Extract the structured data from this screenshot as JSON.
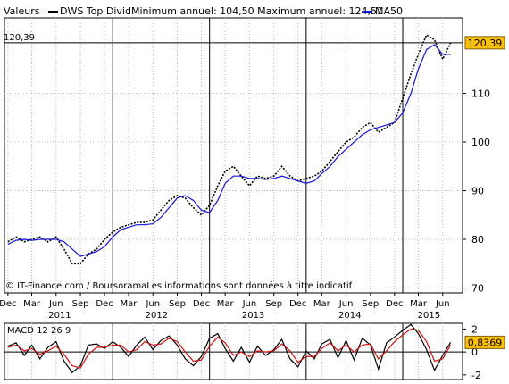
{
  "header": {
    "valeurs_label": "Valeurs",
    "series_label": "DWS Top Divid",
    "minmax_label": "Minimum annuel: 104,50 Maximum annuel: 124,51",
    "ma_label": "MA50",
    "price_color": "#000000",
    "ma_color": "#1414d2"
  },
  "chart_data": [
    {
      "type": "line",
      "series": [
        {
          "name": "DWS Top Divid",
          "color": "#000000",
          "x": [
            "2010-12-01",
            "2011-01-01",
            "2011-02-01",
            "2011-03-01",
            "2011-04-01",
            "2011-05-01",
            "2011-06-01",
            "2011-07-01",
            "2011-08-01",
            "2011-09-01",
            "2011-10-01",
            "2011-11-01",
            "2011-12-01",
            "2012-01-01",
            "2012-02-01",
            "2012-03-01",
            "2012-04-01",
            "2012-05-01",
            "2012-06-01",
            "2012-07-01",
            "2012-08-01",
            "2012-09-01",
            "2012-10-01",
            "2012-11-01",
            "2012-12-01",
            "2013-01-01",
            "2013-02-01",
            "2013-03-01",
            "2013-04-01",
            "2013-05-01",
            "2013-06-01",
            "2013-07-01",
            "2013-08-01",
            "2013-09-01",
            "2013-10-01",
            "2013-11-01",
            "2013-12-01",
            "2014-01-01",
            "2014-02-01",
            "2014-03-01",
            "2014-04-01",
            "2014-05-01",
            "2014-06-01",
            "2014-07-01",
            "2014-08-01",
            "2014-09-01",
            "2014-10-01",
            "2014-11-01",
            "2014-12-01",
            "2015-01-01",
            "2015-02-01",
            "2015-03-01",
            "2015-04-01",
            "2015-05-01",
            "2015-06-01",
            "2015-07-01"
          ],
          "values": [
            79.5,
            80.5,
            79.5,
            80,
            80.5,
            79.5,
            80.5,
            78,
            75,
            75,
            77,
            78,
            80,
            81.5,
            82.5,
            83,
            83.5,
            83.5,
            84,
            86,
            88,
            89,
            88.5,
            86.5,
            85,
            87,
            91,
            94,
            95,
            93,
            91,
            93,
            92.5,
            93,
            95,
            93,
            92,
            92.5,
            93,
            94,
            96,
            98,
            100,
            101,
            103,
            104,
            102,
            103,
            104,
            109,
            114,
            118,
            122,
            121,
            117,
            120.39
          ]
        },
        {
          "name": "MA50",
          "color": "#1414d2",
          "x": [
            "2010-12-01",
            "2011-01-01",
            "2011-02-01",
            "2011-03-01",
            "2011-04-01",
            "2011-05-01",
            "2011-06-01",
            "2011-07-01",
            "2011-08-01",
            "2011-09-01",
            "2011-10-01",
            "2011-11-01",
            "2011-12-01",
            "2012-01-01",
            "2012-02-01",
            "2012-03-01",
            "2012-04-01",
            "2012-05-01",
            "2012-06-01",
            "2012-07-01",
            "2012-08-01",
            "2012-09-01",
            "2012-10-01",
            "2012-11-01",
            "2012-12-01",
            "2013-01-01",
            "2013-02-01",
            "2013-03-01",
            "2013-04-01",
            "2013-05-01",
            "2013-06-01",
            "2013-07-01",
            "2013-08-01",
            "2013-09-01",
            "2013-10-01",
            "2013-11-01",
            "2013-12-01",
            "2014-01-01",
            "2014-02-01",
            "2014-03-01",
            "2014-04-01",
            "2014-05-01",
            "2014-06-01",
            "2014-07-01",
            "2014-08-01",
            "2014-09-01",
            "2014-10-01",
            "2014-11-01",
            "2014-12-01",
            "2015-01-01",
            "2015-02-01",
            "2015-03-01",
            "2015-04-01",
            "2015-05-01",
            "2015-06-01",
            "2015-07-01"
          ],
          "values": [
            79,
            79.8,
            80,
            79.8,
            80,
            80,
            80,
            79.5,
            78,
            76.5,
            77,
            77.5,
            78.5,
            80.5,
            82,
            82.5,
            83,
            83,
            83.2,
            84.5,
            86.5,
            88.5,
            89,
            88,
            86,
            85.5,
            88,
            91.5,
            93,
            93,
            92.5,
            92.5,
            92.3,
            92.5,
            93,
            92.5,
            92,
            91.5,
            92,
            93.5,
            95,
            97,
            98.5,
            100,
            101.5,
            102.5,
            103,
            103.5,
            104,
            106,
            110,
            115,
            119,
            120,
            118,
            118
          ]
        }
      ],
      "y_ticks": [
        70,
        80,
        90,
        100,
        110
      ],
      "ylim": [
        69,
        125.5
      ],
      "xlim": [
        "2010-11-18",
        "2015-08-15"
      ],
      "x_tick_labels": [
        "Dec",
        "Mar",
        "Jun",
        "Sep",
        "Dec",
        "Mar",
        "Jun",
        "Sep",
        "Dec",
        "Mar",
        "Jun",
        "Sep",
        "Dec",
        "Mar",
        "Jun",
        "Sep",
        "Dec",
        "Mar",
        "Jun"
      ],
      "x_ticks": [
        "2010-12-01",
        "2011-03-01",
        "2011-06-01",
        "2011-09-01",
        "2011-12-01",
        "2012-03-01",
        "2012-06-01",
        "2012-09-01",
        "2012-12-01",
        "2013-03-01",
        "2013-06-01",
        "2013-09-01",
        "2013-12-01",
        "2014-03-01",
        "2014-06-01",
        "2014-09-01",
        "2014-12-01",
        "2015-03-01",
        "2015-06-01"
      ],
      "year_labels": [
        "2011",
        "2012",
        "2013",
        "2014",
        "2015"
      ],
      "year_label_dates": [
        "2011-06-15",
        "2012-06-15",
        "2013-06-15",
        "2014-06-15",
        "2015-04-10"
      ],
      "year_dividers": [
        "2012-01-01",
        "2013-01-01",
        "2014-01-01",
        "2015-01-01"
      ],
      "last_value": 120.39,
      "last_value_label": "120,39",
      "last_value_left_label": "120,39",
      "credit": "© IT-Finance.com / BoursoramaLes informations sont données à titre indicatif",
      "grid": true
    },
    {
      "type": "line",
      "title": "MACD 12 26 9",
      "series": [
        {
          "name": "MACD",
          "color": "#000000",
          "x": [
            "2010-12-01",
            "2011-01-01",
            "2011-02-01",
            "2011-03-01",
            "2011-04-01",
            "2011-05-01",
            "2011-06-01",
            "2011-07-01",
            "2011-08-01",
            "2011-09-01",
            "2011-10-01",
            "2011-11-01",
            "2011-12-01",
            "2012-01-01",
            "2012-02-01",
            "2012-03-01",
            "2012-04-01",
            "2012-05-01",
            "2012-06-01",
            "2012-07-01",
            "2012-08-01",
            "2012-09-01",
            "2012-10-01",
            "2012-11-01",
            "2012-12-01",
            "2013-01-01",
            "2013-02-01",
            "2013-03-01",
            "2013-04-01",
            "2013-05-01",
            "2013-06-01",
            "2013-07-01",
            "2013-08-01",
            "2013-09-01",
            "2013-10-01",
            "2013-11-01",
            "2013-12-01",
            "2014-01-01",
            "2014-02-01",
            "2014-03-01",
            "2014-04-01",
            "2014-05-01",
            "2014-06-01",
            "2014-07-01",
            "2014-08-01",
            "2014-09-01",
            "2014-10-01",
            "2014-11-01",
            "2014-12-01",
            "2015-01-01",
            "2015-02-01",
            "2015-03-01",
            "2015-04-01",
            "2015-05-01",
            "2015-06-01",
            "2015-07-01"
          ],
          "values": [
            0.5,
            0.8,
            -0.3,
            0.6,
            -0.6,
            0.4,
            0.9,
            -0.8,
            -1.8,
            -1.2,
            0.6,
            0.7,
            0.3,
            0.9,
            0.4,
            -0.4,
            0.6,
            1.3,
            0.2,
            1.0,
            1.4,
            0.6,
            -0.6,
            -1.2,
            -0.4,
            1.2,
            1.6,
            0.3,
            -0.8,
            0.4,
            -0.9,
            0.5,
            -0.3,
            0.2,
            1.1,
            -0.6,
            -1.3,
            0.1,
            -0.6,
            0.7,
            1.1,
            -0.5,
            1.0,
            -0.7,
            1.2,
            0.6,
            -1.5,
            0.8,
            1.3,
            1.9,
            2.4,
            1.6,
            0.2,
            -1.6,
            -0.3,
            0.84
          ]
        },
        {
          "name": "Signal",
          "color": "#c81414",
          "x": [
            "2010-12-01",
            "2011-01-01",
            "2011-02-01",
            "2011-03-01",
            "2011-04-01",
            "2011-05-01",
            "2011-06-01",
            "2011-07-01",
            "2011-08-01",
            "2011-09-01",
            "2011-10-01",
            "2011-11-01",
            "2011-12-01",
            "2012-01-01",
            "2012-02-01",
            "2012-03-01",
            "2012-04-01",
            "2012-05-01",
            "2012-06-01",
            "2012-07-01",
            "2012-08-01",
            "2012-09-01",
            "2012-10-01",
            "2012-11-01",
            "2012-12-01",
            "2013-01-01",
            "2013-02-01",
            "2013-03-01",
            "2013-04-01",
            "2013-05-01",
            "2013-06-01",
            "2013-07-01",
            "2013-08-01",
            "2013-09-01",
            "2013-10-01",
            "2013-11-01",
            "2013-12-01",
            "2014-01-01",
            "2014-02-01",
            "2014-03-01",
            "2014-04-01",
            "2014-05-01",
            "2014-06-01",
            "2014-07-01",
            "2014-08-01",
            "2014-09-01",
            "2014-10-01",
            "2014-11-01",
            "2014-12-01",
            "2015-01-01",
            "2015-02-01",
            "2015-03-01",
            "2015-04-01",
            "2015-05-01",
            "2015-06-01",
            "2015-07-01"
          ],
          "values": [
            0.4,
            0.6,
            0.1,
            0.3,
            -0.2,
            0.1,
            0.5,
            -0.2,
            -1.2,
            -1.4,
            -0.2,
            0.4,
            0.4,
            0.6,
            0.6,
            0.0,
            0.2,
            0.9,
            0.6,
            0.7,
            1.2,
            0.9,
            0.0,
            -0.8,
            -0.7,
            0.5,
            1.3,
            0.8,
            -0.3,
            0.0,
            -0.4,
            0.1,
            0.0,
            0.1,
            0.7,
            0.1,
            -0.9,
            -0.4,
            -0.4,
            0.3,
            0.8,
            0.1,
            0.6,
            0.0,
            0.6,
            0.7,
            -0.6,
            0.1,
            0.9,
            1.5,
            2.0,
            1.9,
            0.9,
            -0.8,
            -0.6,
            0.6
          ]
        }
      ],
      "y_ticks": [
        -2,
        0,
        2
      ],
      "ylim": [
        -2.4,
        2.5
      ],
      "last_value": 0.8369,
      "last_value_label": "0,8369"
    }
  ]
}
